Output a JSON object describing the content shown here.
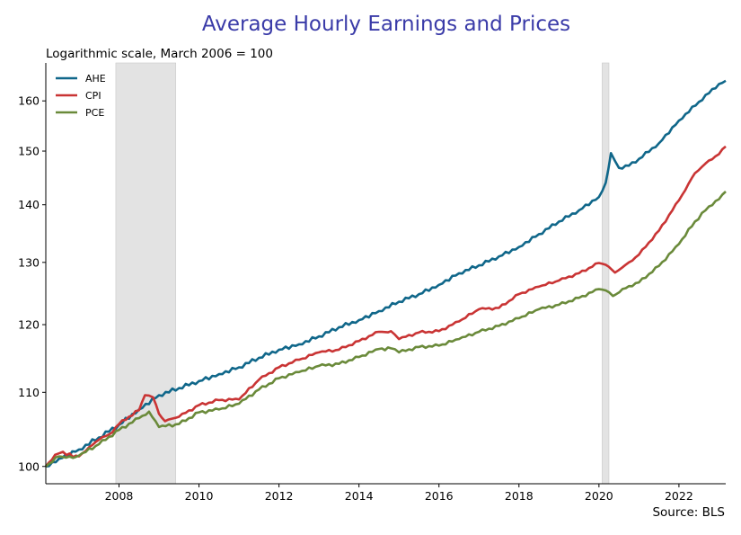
{
  "chart_data": {
    "type": "line",
    "title": "Average Hourly Earnings and Prices",
    "subtitle": "Logarithmic scale, March 2006 = 100",
    "source": "Source: BLS",
    "xlabel": "",
    "ylabel": "",
    "y_scale": "log",
    "xlim": [
      2006.17,
      2023.17
    ],
    "ylim": [
      97.8,
      168.0
    ],
    "x_ticks": [
      2008,
      2010,
      2012,
      2014,
      2016,
      2018,
      2020,
      2022
    ],
    "y_ticks": [
      100,
      110,
      120,
      130,
      140,
      150,
      160
    ],
    "legend_position": "top-left",
    "grid": false,
    "recessions": [
      [
        2007.92,
        2009.42
      ],
      [
        2020.08,
        2020.25
      ]
    ],
    "recession_color": "#e3e3e3",
    "series": [
      {
        "name": "AHE",
        "color": "#10678a",
        "points": [
          [
            2006.17,
            100.0
          ],
          [
            2006.5,
            101.0
          ],
          [
            2007.0,
            102.2
          ],
          [
            2007.5,
            103.8
          ],
          [
            2008.0,
            105.5
          ],
          [
            2008.5,
            107.6
          ],
          [
            2009.0,
            109.6
          ],
          [
            2009.5,
            110.6
          ],
          [
            2010.0,
            111.6
          ],
          [
            2010.5,
            112.6
          ],
          [
            2011.0,
            113.6
          ],
          [
            2011.5,
            115.0
          ],
          [
            2012.0,
            116.2
          ],
          [
            2012.5,
            117.0
          ],
          [
            2013.0,
            118.2
          ],
          [
            2013.5,
            119.6
          ],
          [
            2014.0,
            120.7
          ],
          [
            2014.5,
            122.1
          ],
          [
            2015.0,
            123.6
          ],
          [
            2015.5,
            124.8
          ],
          [
            2016.0,
            126.3
          ],
          [
            2016.5,
            128.2
          ],
          [
            2017.0,
            129.5
          ],
          [
            2017.5,
            131.0
          ],
          [
            2018.0,
            132.6
          ],
          [
            2018.5,
            134.8
          ],
          [
            2019.0,
            137.0
          ],
          [
            2019.5,
            139.0
          ],
          [
            2020.0,
            141.4
          ],
          [
            2020.17,
            144.0
          ],
          [
            2020.3,
            149.6
          ],
          [
            2020.5,
            146.8
          ],
          [
            2020.75,
            147.2
          ],
          [
            2021.0,
            148.5
          ],
          [
            2021.5,
            151.5
          ],
          [
            2022.0,
            156.0
          ],
          [
            2022.5,
            159.8
          ],
          [
            2023.0,
            163.5
          ],
          [
            2023.17,
            164.2
          ]
        ]
      },
      {
        "name": "CPI",
        "color": "#c93434",
        "points": [
          [
            2006.17,
            100.0
          ],
          [
            2006.4,
            101.5
          ],
          [
            2006.6,
            101.9
          ],
          [
            2006.85,
            101.2
          ],
          [
            2007.0,
            101.3
          ],
          [
            2007.25,
            102.5
          ],
          [
            2007.5,
            103.5
          ],
          [
            2007.75,
            104.2
          ],
          [
            2008.0,
            105.6
          ],
          [
            2008.25,
            106.6
          ],
          [
            2008.5,
            107.5
          ],
          [
            2008.65,
            109.6
          ],
          [
            2008.85,
            109.3
          ],
          [
            2009.0,
            107.0
          ],
          [
            2009.15,
            106.0
          ],
          [
            2009.5,
            106.6
          ],
          [
            2010.0,
            108.2
          ],
          [
            2010.5,
            108.9
          ],
          [
            2011.0,
            109.0
          ],
          [
            2011.5,
            111.8
          ],
          [
            2012.0,
            113.6
          ],
          [
            2012.5,
            114.7
          ],
          [
            2013.0,
            115.8
          ],
          [
            2013.5,
            116.2
          ],
          [
            2014.0,
            117.5
          ],
          [
            2014.5,
            118.9
          ],
          [
            2014.8,
            119.0
          ],
          [
            2015.0,
            117.8
          ],
          [
            2015.5,
            118.8
          ],
          [
            2016.0,
            119.0
          ],
          [
            2016.5,
            120.5
          ],
          [
            2017.0,
            122.4
          ],
          [
            2017.5,
            122.6
          ],
          [
            2018.0,
            124.8
          ],
          [
            2018.5,
            126.0
          ],
          [
            2019.0,
            127.0
          ],
          [
            2019.5,
            128.2
          ],
          [
            2020.0,
            129.9
          ],
          [
            2020.17,
            129.6
          ],
          [
            2020.4,
            128.3
          ],
          [
            2020.75,
            130.0
          ],
          [
            2021.0,
            131.3
          ],
          [
            2021.5,
            135.4
          ],
          [
            2022.0,
            140.8
          ],
          [
            2022.4,
            145.8
          ],
          [
            2022.75,
            148.2
          ],
          [
            2023.0,
            149.4
          ],
          [
            2023.17,
            150.9
          ]
        ]
      },
      {
        "name": "PCE",
        "color": "#6a8a3a",
        "points": [
          [
            2006.17,
            100.0
          ],
          [
            2006.5,
            101.3
          ],
          [
            2006.85,
            101.1
          ],
          [
            2007.0,
            101.4
          ],
          [
            2007.5,
            102.9
          ],
          [
            2008.0,
            104.8
          ],
          [
            2008.5,
            106.4
          ],
          [
            2008.75,
            107.3
          ],
          [
            2009.0,
            105.2
          ],
          [
            2009.5,
            105.6
          ],
          [
            2010.0,
            107.2
          ],
          [
            2010.5,
            107.6
          ],
          [
            2011.0,
            108.4
          ],
          [
            2011.5,
            110.4
          ],
          [
            2012.0,
            112.0
          ],
          [
            2012.5,
            112.9
          ],
          [
            2013.0,
            113.8
          ],
          [
            2013.5,
            114.1
          ],
          [
            2014.0,
            115.1
          ],
          [
            2014.5,
            116.3
          ],
          [
            2014.8,
            116.4
          ],
          [
            2015.0,
            115.8
          ],
          [
            2015.5,
            116.6
          ],
          [
            2016.0,
            116.8
          ],
          [
            2016.5,
            117.8
          ],
          [
            2017.0,
            118.9
          ],
          [
            2017.5,
            119.8
          ],
          [
            2018.0,
            121.0
          ],
          [
            2018.5,
            122.4
          ],
          [
            2019.0,
            123.1
          ],
          [
            2019.5,
            124.2
          ],
          [
            2020.0,
            125.6
          ],
          [
            2020.17,
            125.4
          ],
          [
            2020.35,
            124.5
          ],
          [
            2020.75,
            126.1
          ],
          [
            2021.0,
            126.7
          ],
          [
            2021.5,
            129.4
          ],
          [
            2022.0,
            133.1
          ],
          [
            2022.4,
            137.0
          ],
          [
            2022.75,
            139.7
          ],
          [
            2023.0,
            141.0
          ],
          [
            2023.17,
            142.4
          ]
        ]
      }
    ]
  }
}
